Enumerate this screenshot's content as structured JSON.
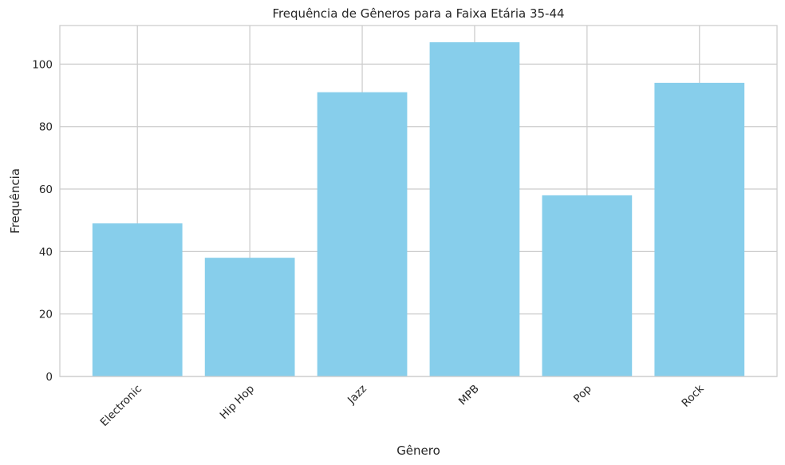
{
  "chart_data": {
    "type": "bar",
    "title": "Frequência de Gêneros para a Faixa Etária 35-44",
    "xlabel": "Gênero",
    "ylabel": "Frequência",
    "categories": [
      "Electronic",
      "Hip Hop",
      "Jazz",
      "MPB",
      "Pop",
      "Rock"
    ],
    "values": [
      49,
      38,
      91,
      107,
      58,
      94
    ],
    "ylim": [
      0,
      112.35
    ],
    "yticks": [
      "0",
      "20",
      "40",
      "60",
      "80",
      "100"
    ],
    "grid": true,
    "legend": "none",
    "bar_color": "#87CEEB",
    "grid_color": "#cccccc",
    "spine_color": "#cccccc"
  }
}
